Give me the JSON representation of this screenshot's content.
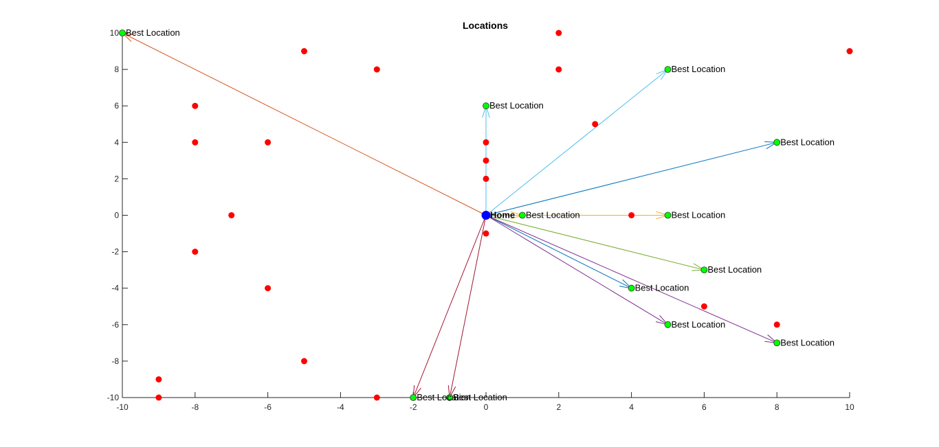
{
  "chart_data": {
    "type": "scatter",
    "title": "Locations",
    "xlabel": "",
    "ylabel": "",
    "xlim": [
      -10,
      10
    ],
    "ylim": [
      -10,
      10
    ],
    "xticks": [
      -10,
      -8,
      -6,
      -4,
      -2,
      0,
      2,
      4,
      6,
      8,
      10
    ],
    "yticks": [
      -10,
      -8,
      -6,
      -4,
      -2,
      0,
      2,
      4,
      6,
      8,
      10
    ],
    "grid": false,
    "home": {
      "x": 0,
      "y": 0,
      "label": "Home",
      "color": "#0000ff"
    },
    "red_points": [
      {
        "x": 2,
        "y": 10
      },
      {
        "x": -5,
        "y": 9
      },
      {
        "x": -3,
        "y": 8
      },
      {
        "x": 2,
        "y": 8
      },
      {
        "x": 10,
        "y": 9
      },
      {
        "x": -8,
        "y": 6
      },
      {
        "x": 3,
        "y": 5
      },
      {
        "x": -8,
        "y": 4
      },
      {
        "x": -6,
        "y": 4
      },
      {
        "x": 0,
        "y": 4
      },
      {
        "x": 0,
        "y": 3
      },
      {
        "x": 0,
        "y": 2
      },
      {
        "x": -7,
        "y": 0
      },
      {
        "x": 4,
        "y": 0
      },
      {
        "x": 0,
        "y": -1
      },
      {
        "x": -8,
        "y": -2
      },
      {
        "x": -6,
        "y": -4
      },
      {
        "x": 6,
        "y": -5
      },
      {
        "x": 8,
        "y": -6
      },
      {
        "x": -5,
        "y": -8
      },
      {
        "x": -9,
        "y": -9
      },
      {
        "x": -9,
        "y": -10
      },
      {
        "x": -3,
        "y": -10
      }
    ],
    "red_color": "#ff0000",
    "best_color": "#00ff00",
    "best_locations": [
      {
        "x": -10,
        "y": 10,
        "label": "Best Location",
        "arrow_color": "#d95319"
      },
      {
        "x": 0,
        "y": 6,
        "label": "Best Location",
        "arrow_color": "#4dbeee"
      },
      {
        "x": 5,
        "y": 8,
        "label": "Best Location",
        "arrow_color": "#4dbeee"
      },
      {
        "x": 8,
        "y": 4,
        "label": "Best Location",
        "arrow_color": "#0072bd"
      },
      {
        "x": 1,
        "y": 0,
        "label": "Best Location",
        "arrow_color": "#edb120"
      },
      {
        "x": 5,
        "y": 0,
        "label": "Best Location",
        "arrow_color": "#edb120"
      },
      {
        "x": 6,
        "y": -3,
        "label": "Best Location",
        "arrow_color": "#77ac30"
      },
      {
        "x": 4,
        "y": -4,
        "label": "Best Location",
        "arrow_color": "#0072bd"
      },
      {
        "x": 5,
        "y": -6,
        "label": "Best Location",
        "arrow_color": "#7e2f8e"
      },
      {
        "x": 8,
        "y": -7,
        "label": "Best Location",
        "arrow_color": "#7e2f8e"
      },
      {
        "x": -2,
        "y": -10,
        "label": "Best Location",
        "arrow_color": "#a2142f"
      },
      {
        "x": -1,
        "y": -10,
        "label": "Best Location",
        "arrow_color": "#a2142f"
      }
    ]
  }
}
